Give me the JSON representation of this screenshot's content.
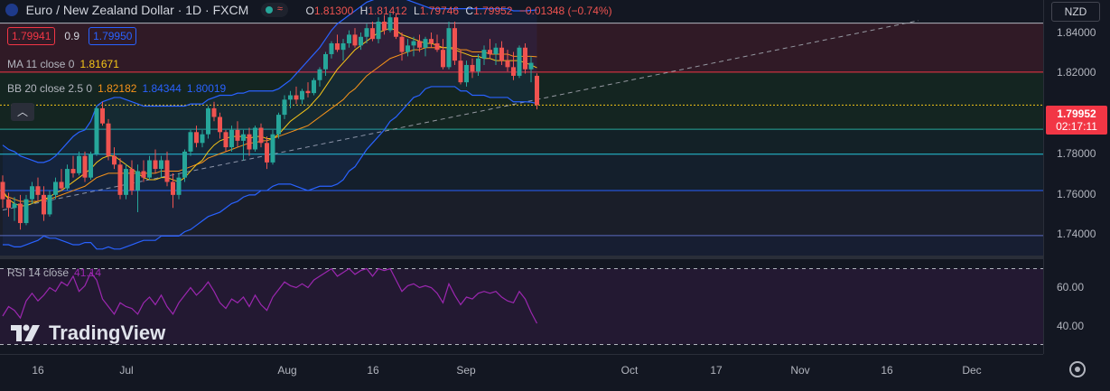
{
  "header": {
    "symbol_title": "Euro / New Zealand Dollar · 1D · FXCM",
    "open_label": "O",
    "open": "1.81300",
    "high_label": "H",
    "high": "1.81412",
    "low_label": "L",
    "low": "1.79746",
    "close_label": "C",
    "close": "1.79952",
    "change": "−0.01348 (−0.74%)",
    "currency": "NZD"
  },
  "order_boxes": {
    "sell": "1.79941",
    "spread": "0.9",
    "buy": "1.79950"
  },
  "indicators": {
    "ma_label": "MA 11 close 0",
    "ma_value": "1.81671",
    "bb_label": "BB 20 close 2.5 0",
    "bb_basis": "1.82182",
    "bb_upper": "1.84344",
    "bb_lower": "1.80019",
    "rsi_label": "RSI 14 close",
    "rsi_value": "41.14"
  },
  "price_axis": {
    "labels": [
      "1.84000",
      "1.82000",
      "1.80000",
      "1.78000",
      "1.76000",
      "1.74000"
    ],
    "current_price": "1.79952",
    "countdown": "02:17:11"
  },
  "rsi_axis": {
    "labels": [
      "60.00",
      "40.00"
    ]
  },
  "time_axis": {
    "labels": [
      "16",
      "Jul",
      "Aug",
      "16",
      "Sep",
      "Oct",
      "17",
      "Nov",
      "16",
      "Dec"
    ]
  },
  "watermark": "TradingView",
  "colors": {
    "up": "#26a69a",
    "down": "#ef5350",
    "ma": "#f5c518",
    "bb": "#2962ff",
    "bb_basis": "#f7931a",
    "rsi": "#9c27b0",
    "last": "#f23645"
  },
  "chart_data": {
    "type": "candlestick",
    "ylim": [
      1.73,
      1.848
    ],
    "rsi_ylim": [
      25,
      75
    ],
    "candles": [
      [
        1.764,
        1.767,
        1.752,
        1.756
      ],
      [
        1.756,
        1.759,
        1.748,
        1.752
      ],
      [
        1.752,
        1.757,
        1.746,
        1.754
      ],
      [
        1.754,
        1.758,
        1.742,
        1.745
      ],
      [
        1.745,
        1.758,
        1.744,
        1.756
      ],
      [
        1.756,
        1.764,
        1.754,
        1.762
      ],
      [
        1.762,
        1.766,
        1.755,
        1.758
      ],
      [
        1.758,
        1.762,
        1.746,
        1.749
      ],
      [
        1.749,
        1.76,
        1.748,
        1.758
      ],
      [
        1.758,
        1.766,
        1.756,
        1.764
      ],
      [
        1.764,
        1.77,
        1.76,
        1.761
      ],
      [
        1.761,
        1.772,
        1.76,
        1.77
      ],
      [
        1.77,
        1.776,
        1.766,
        1.768
      ],
      [
        1.768,
        1.778,
        1.767,
        1.776
      ],
      [
        1.776,
        1.778,
        1.764,
        1.766
      ],
      [
        1.766,
        1.778,
        1.765,
        1.777
      ],
      [
        1.777,
        1.799,
        1.776,
        1.798
      ],
      [
        1.798,
        1.801,
        1.79,
        1.791
      ],
      [
        1.791,
        1.793,
        1.774,
        1.776
      ],
      [
        1.776,
        1.78,
        1.77,
        1.772
      ],
      [
        1.772,
        1.775,
        1.756,
        1.758
      ],
      [
        1.758,
        1.772,
        1.756,
        1.77
      ],
      [
        1.77,
        1.774,
        1.758,
        1.76
      ],
      [
        1.76,
        1.772,
        1.75,
        1.769
      ],
      [
        1.769,
        1.774,
        1.764,
        1.766
      ],
      [
        1.766,
        1.776,
        1.765,
        1.774
      ],
      [
        1.774,
        1.779,
        1.768,
        1.77
      ],
      [
        1.77,
        1.776,
        1.766,
        1.774
      ],
      [
        1.774,
        1.778,
        1.762,
        1.764
      ],
      [
        1.764,
        1.768,
        1.752,
        1.758
      ],
      [
        1.758,
        1.768,
        1.756,
        1.766
      ],
      [
        1.766,
        1.779,
        1.764,
        1.778
      ],
      [
        1.778,
        1.788,
        1.776,
        1.787
      ],
      [
        1.787,
        1.79,
        1.78,
        1.782
      ],
      [
        1.782,
        1.788,
        1.78,
        1.786
      ],
      [
        1.786,
        1.799,
        1.784,
        1.798
      ],
      [
        1.798,
        1.801,
        1.792,
        1.794
      ],
      [
        1.794,
        1.796,
        1.784,
        1.787
      ],
      [
        1.787,
        1.788,
        1.778,
        1.78
      ],
      [
        1.78,
        1.79,
        1.778,
        1.788
      ],
      [
        1.788,
        1.792,
        1.78,
        1.783
      ],
      [
        1.783,
        1.788,
        1.774,
        1.786
      ],
      [
        1.786,
        1.789,
        1.776,
        1.779
      ],
      [
        1.779,
        1.79,
        1.778,
        1.789
      ],
      [
        1.789,
        1.791,
        1.78,
        1.782
      ],
      [
        1.782,
        1.785,
        1.77,
        1.773
      ],
      [
        1.773,
        1.788,
        1.772,
        1.786
      ],
      [
        1.786,
        1.796,
        1.784,
        1.795
      ],
      [
        1.795,
        1.804,
        1.793,
        1.802
      ],
      [
        1.802,
        1.806,
        1.798,
        1.804
      ],
      [
        1.804,
        1.808,
        1.8,
        1.802
      ],
      [
        1.802,
        1.807,
        1.8,
        1.806
      ],
      [
        1.806,
        1.81,
        1.803,
        1.805
      ],
      [
        1.805,
        1.812,
        1.804,
        1.811
      ],
      [
        1.811,
        1.817,
        1.808,
        1.816
      ],
      [
        1.816,
        1.824,
        1.813,
        1.823
      ],
      [
        1.823,
        1.829,
        1.821,
        1.828
      ],
      [
        1.828,
        1.832,
        1.824,
        1.825
      ],
      [
        1.825,
        1.83,
        1.82,
        1.828
      ],
      [
        1.828,
        1.834,
        1.826,
        1.832
      ],
      [
        1.832,
        1.835,
        1.826,
        1.827
      ],
      [
        1.827,
        1.833,
        1.825,
        1.831
      ],
      [
        1.831,
        1.837,
        1.828,
        1.835
      ],
      [
        1.835,
        1.838,
        1.829,
        1.83
      ],
      [
        1.83,
        1.84,
        1.828,
        1.838
      ],
      [
        1.838,
        1.841,
        1.832,
        1.834
      ],
      [
        1.834,
        1.842,
        1.833,
        1.84
      ],
      [
        1.84,
        1.842,
        1.83,
        1.831
      ],
      [
        1.831,
        1.833,
        1.82,
        1.824
      ],
      [
        1.824,
        1.83,
        1.822,
        1.827
      ],
      [
        1.827,
        1.831,
        1.822,
        1.829
      ],
      [
        1.829,
        1.832,
        1.824,
        1.826
      ],
      [
        1.826,
        1.831,
        1.822,
        1.83
      ],
      [
        1.83,
        1.833,
        1.826,
        1.828
      ],
      [
        1.828,
        1.832,
        1.824,
        1.825
      ],
      [
        1.825,
        1.83,
        1.816,
        1.817
      ],
      [
        1.817,
        1.838,
        1.816,
        1.835
      ],
      [
        1.835,
        1.838,
        1.818,
        1.82
      ],
      [
        1.82,
        1.825,
        1.809,
        1.81
      ],
      [
        1.81,
        1.82,
        1.808,
        1.818
      ],
      [
        1.818,
        1.821,
        1.812,
        1.815
      ],
      [
        1.815,
        1.823,
        1.813,
        1.821
      ],
      [
        1.821,
        1.827,
        1.818,
        1.825
      ],
      [
        1.825,
        1.83,
        1.821,
        1.823
      ],
      [
        1.823,
        1.828,
        1.818,
        1.826
      ],
      [
        1.826,
        1.829,
        1.818,
        1.82
      ],
      [
        1.82,
        1.825,
        1.815,
        1.817
      ],
      [
        1.817,
        1.824,
        1.811,
        1.813
      ],
      [
        1.813,
        1.827,
        1.812,
        1.826
      ],
      [
        1.826,
        1.828,
        1.814,
        1.816
      ],
      [
        1.816,
        1.822,
        1.81,
        1.819
      ],
      [
        1.813,
        1.8141,
        1.7975,
        1.7995
      ]
    ],
    "rsi": [
      45,
      50,
      48,
      44,
      53,
      57,
      53,
      56,
      60,
      58,
      63,
      61,
      66,
      58,
      61,
      68,
      64,
      54,
      50,
      46,
      52,
      50,
      49,
      46,
      52,
      55,
      51,
      56,
      50,
      46,
      52,
      56,
      60,
      56,
      59,
      63,
      58,
      52,
      49,
      54,
      52,
      55,
      50,
      56,
      51,
      48,
      55,
      59,
      63,
      61,
      60,
      62,
      60,
      64,
      66,
      68,
      70,
      66,
      68,
      70,
      67,
      69,
      70,
      66,
      70,
      69,
      70,
      64,
      58,
      61,
      62,
      60,
      61,
      60,
      57,
      52,
      62,
      56,
      51,
      55,
      54,
      57,
      58,
      57,
      58,
      55,
      53,
      52,
      58,
      54,
      47,
      41.14
    ],
    "ma11": [
      1.76,
      1.756,
      1.754,
      1.753,
      1.753,
      1.754,
      1.755,
      1.756,
      1.757,
      1.759,
      1.76,
      1.762,
      1.764,
      1.766,
      1.768,
      1.77,
      1.773,
      1.775,
      1.776,
      1.776,
      1.774,
      1.772,
      1.77,
      1.768,
      1.766,
      1.765,
      1.765,
      1.766,
      1.766,
      1.765,
      1.764,
      1.766,
      1.769,
      1.772,
      1.774,
      1.778,
      1.781,
      1.783,
      1.784,
      1.785,
      1.785,
      1.785,
      1.784,
      1.785,
      1.785,
      1.784,
      1.784,
      1.786,
      1.789,
      1.792,
      1.794,
      1.796,
      1.798,
      1.801,
      1.804,
      1.808,
      1.812,
      1.816,
      1.819,
      1.822,
      1.825,
      1.827,
      1.829,
      1.831,
      1.833,
      1.834,
      1.835,
      1.834,
      1.832,
      1.831,
      1.83,
      1.829,
      1.828,
      1.828,
      1.827,
      1.826,
      1.826,
      1.825,
      1.824,
      1.823,
      1.822,
      1.822,
      1.821,
      1.821,
      1.82,
      1.82,
      1.82,
      1.82,
      1.82,
      1.819,
      1.818,
      1.8167
    ],
    "bb_basis": [
      1.758,
      1.757,
      1.756,
      1.755,
      1.755,
      1.755,
      1.755,
      1.756,
      1.756,
      1.757,
      1.758,
      1.759,
      1.76,
      1.761,
      1.762,
      1.764,
      1.766,
      1.767,
      1.768,
      1.768,
      1.768,
      1.768,
      1.768,
      1.768,
      1.768,
      1.768,
      1.768,
      1.769,
      1.769,
      1.769,
      1.769,
      1.77,
      1.771,
      1.772,
      1.773,
      1.775,
      1.776,
      1.777,
      1.778,
      1.779,
      1.78,
      1.781,
      1.782,
      1.782,
      1.783,
      1.783,
      1.784,
      1.785,
      1.786,
      1.787,
      1.788,
      1.789,
      1.79,
      1.792,
      1.794,
      1.796,
      1.798,
      1.8,
      1.802,
      1.805,
      1.807,
      1.81,
      1.813,
      1.815,
      1.817,
      1.819,
      1.821,
      1.822,
      1.823,
      1.824,
      1.825,
      1.825,
      1.826,
      1.826,
      1.826,
      1.826,
      1.826,
      1.826,
      1.825,
      1.825,
      1.824,
      1.824,
      1.824,
      1.823,
      1.823,
      1.823,
      1.823,
      1.822,
      1.822,
      1.822,
      1.822,
      1.8218
    ],
    "bb_upper": [
      1.781,
      1.779,
      1.778,
      1.776,
      1.775,
      1.774,
      1.773,
      1.773,
      1.774,
      1.776,
      1.779,
      1.782,
      1.785,
      1.787,
      1.788,
      1.792,
      1.799,
      1.801,
      1.802,
      1.803,
      1.803,
      1.802,
      1.801,
      1.8,
      1.799,
      1.799,
      1.799,
      1.799,
      1.799,
      1.799,
      1.799,
      1.799,
      1.8,
      1.8,
      1.8,
      1.802,
      1.803,
      1.804,
      1.804,
      1.804,
      1.805,
      1.805,
      1.806,
      1.806,
      1.806,
      1.806,
      1.806,
      1.807,
      1.809,
      1.811,
      1.814,
      1.817,
      1.82,
      1.823,
      1.826,
      1.83,
      1.834,
      1.837,
      1.839,
      1.841,
      1.843,
      1.845,
      1.847,
      1.848,
      1.849,
      1.85,
      1.85,
      1.85,
      1.849,
      1.848,
      1.847,
      1.846,
      1.845,
      1.844,
      1.844,
      1.844,
      1.844,
      1.844,
      1.844,
      1.844,
      1.844,
      1.844,
      1.844,
      1.844,
      1.844,
      1.844,
      1.844,
      1.843,
      1.843,
      1.843,
      1.8432,
      1.8434
    ],
    "bb_lower": [
      1.735,
      1.735,
      1.734,
      1.734,
      1.735,
      1.736,
      1.737,
      1.739,
      1.738,
      1.738,
      1.737,
      1.736,
      1.735,
      1.735,
      1.736,
      1.736,
      1.733,
      1.733,
      1.734,
      1.733,
      1.733,
      1.734,
      1.735,
      1.736,
      1.737,
      1.737,
      1.737,
      1.739,
      1.739,
      1.739,
      1.739,
      1.741,
      1.742,
      1.744,
      1.746,
      1.748,
      1.749,
      1.75,
      1.752,
      1.754,
      1.755,
      1.757,
      1.758,
      1.758,
      1.76,
      1.76,
      1.762,
      1.763,
      1.763,
      1.763,
      1.762,
      1.761,
      1.76,
      1.761,
      1.762,
      1.762,
      1.762,
      1.763,
      1.765,
      1.769,
      1.771,
      1.775,
      1.779,
      1.782,
      1.785,
      1.788,
      1.792,
      1.794,
      1.797,
      1.8,
      1.803,
      1.804,
      1.807,
      1.808,
      1.808,
      1.808,
      1.808,
      1.808,
      1.806,
      1.806,
      1.804,
      1.804,
      1.804,
      1.803,
      1.803,
      1.803,
      1.803,
      1.801,
      1.801,
      1.801,
      1.8008,
      1.8002
    ],
    "horizontal_levels": [
      1.8373,
      1.8147,
      1.7995,
      1.7883,
      1.7768,
      1.76,
      1.7392
    ],
    "trendline": {
      "from": [
        0,
        1.751
      ],
      "to": [
        156,
        1.8385
      ]
    },
    "rsi_bands": [
      70,
      30
    ]
  }
}
